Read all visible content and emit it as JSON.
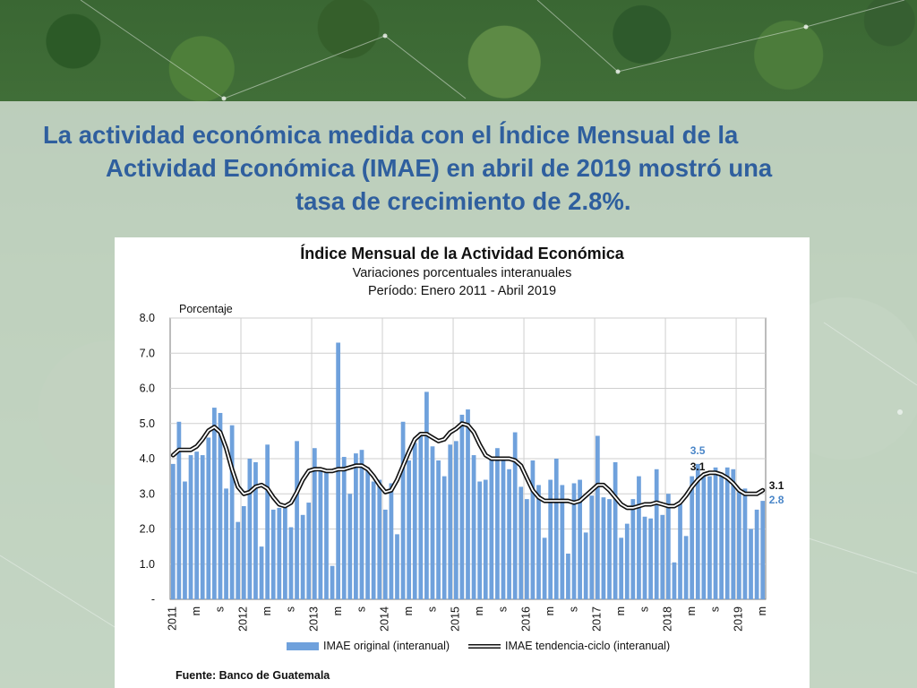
{
  "slide": {
    "headline_line1": "La actividad económica medida con el Índice Mensual de la",
    "headline_line2": "Actividad Económica (IMAE) en abril de 2019 mostró una",
    "headline_line3": "tasa de crecimiento de 2.8%."
  },
  "colors": {
    "headline": "#2f5f9e",
    "bar": "#6fa1dc",
    "trend": "#111111",
    "label_blue": "#4a86c8"
  },
  "chart_data": {
    "type": "bar",
    "title": "Índice Mensual de la Actividad Económica",
    "subtitle": "Variaciones porcentuales interanuales",
    "period": "Período: Enero 2011 - Abril 2019",
    "ylabel": "Porcentaje",
    "ylim": [
      0,
      8
    ],
    "yticks": [
      "-",
      "1.0",
      "2.0",
      "3.0",
      "4.0",
      "5.0",
      "6.0",
      "7.0",
      "8.0"
    ],
    "year_labels": [
      "2011",
      "2012",
      "2013",
      "2014",
      "2015",
      "2016",
      "2017",
      "2018",
      "2019"
    ],
    "month_labels": [
      "m",
      "s"
    ],
    "grid": true,
    "source": "Fuente: Banco de Guatemala",
    "series": [
      {
        "name": "IMAE original (interanual)",
        "type": "bar",
        "values": [
          3.85,
          5.05,
          3.35,
          4.1,
          4.2,
          4.1,
          4.6,
          5.45,
          5.3,
          3.15,
          4.95,
          2.2,
          2.65,
          4.0,
          3.9,
          1.5,
          4.4,
          2.55,
          2.6,
          2.6,
          2.05,
          4.5,
          2.4,
          2.75,
          4.3,
          3.7,
          3.65,
          0.95,
          7.3,
          4.05,
          3.0,
          4.15,
          4.25,
          3.75,
          3.35,
          3.4,
          2.55,
          3.3,
          1.85,
          5.05,
          3.95,
          4.45,
          4.75,
          5.9,
          4.35,
          3.95,
          3.5,
          4.4,
          4.5,
          5.25,
          5.4,
          4.1,
          3.35,
          3.4,
          4.0,
          4.3,
          4.05,
          3.7,
          4.75,
          3.2,
          2.85,
          3.95,
          3.25,
          1.75,
          3.4,
          4.0,
          3.25,
          1.3,
          3.3,
          3.4,
          1.9,
          2.95,
          4.65,
          2.9,
          2.85,
          3.9,
          1.75,
          2.15,
          2.85,
          3.5,
          2.35,
          2.3,
          3.7,
          2.4,
          3.0,
          1.05,
          2.7,
          1.8,
          3.5,
          3.85,
          3.55,
          3.5,
          3.75,
          3.6,
          3.75,
          3.7,
          3.05,
          3.15,
          2.0,
          2.55,
          2.8
        ]
      },
      {
        "name": "IMAE tendencia-ciclo (interanual)",
        "type": "line",
        "values": [
          4.1,
          4.25,
          4.25,
          4.25,
          4.35,
          4.55,
          4.8,
          4.9,
          4.75,
          4.3,
          3.7,
          3.2,
          3.0,
          3.05,
          3.2,
          3.25,
          3.15,
          2.9,
          2.7,
          2.65,
          2.75,
          3.05,
          3.4,
          3.65,
          3.7,
          3.7,
          3.65,
          3.65,
          3.7,
          3.7,
          3.75,
          3.8,
          3.8,
          3.7,
          3.5,
          3.25,
          3.05,
          3.1,
          3.4,
          3.8,
          4.2,
          4.55,
          4.7,
          4.7,
          4.6,
          4.5,
          4.55,
          4.75,
          4.85,
          5.0,
          4.95,
          4.75,
          4.4,
          4.1,
          4.0,
          4.0,
          4.0,
          4.0,
          3.95,
          3.8,
          3.45,
          3.1,
          2.9,
          2.8,
          2.8,
          2.8,
          2.8,
          2.8,
          2.75,
          2.8,
          2.95,
          3.1,
          3.25,
          3.25,
          3.1,
          2.9,
          2.7,
          2.6,
          2.6,
          2.65,
          2.7,
          2.7,
          2.75,
          2.7,
          2.65,
          2.65,
          2.75,
          2.95,
          3.2,
          3.4,
          3.55,
          3.6,
          3.6,
          3.55,
          3.45,
          3.3,
          3.1,
          3.0,
          3.0,
          3.0,
          3.1
        ]
      }
    ],
    "annotations": [
      {
        "text": "3.5",
        "color": "blue"
      },
      {
        "text": "3.1",
        "color": "black"
      },
      {
        "text": "3.1",
        "color": "black"
      },
      {
        "text": "2.8",
        "color": "blue"
      }
    ]
  }
}
